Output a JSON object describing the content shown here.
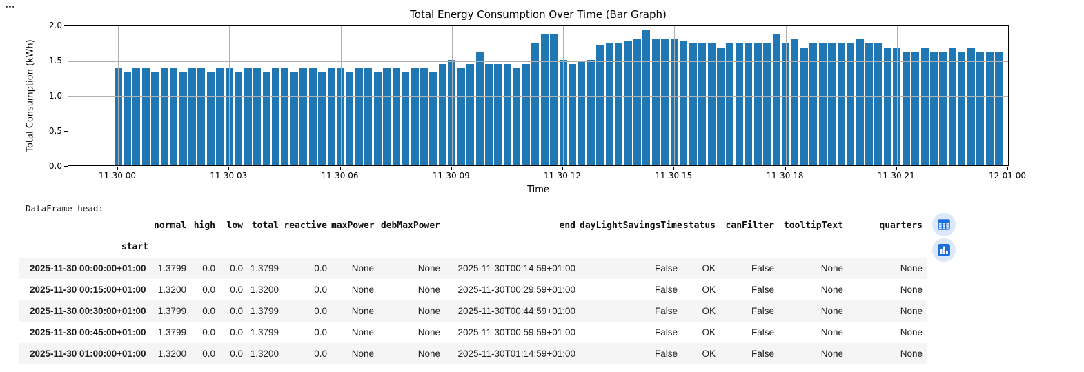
{
  "more_actions": {
    "icon": "ellipsis-icon"
  },
  "chart": {
    "title": "Total Energy Consumption Over Time (Bar Graph)",
    "ylabel": "Total Consumption (kWh)",
    "xlabel": "Time",
    "yticks": [
      "2.0",
      "1.5",
      "1.0",
      "0.5",
      "0.0"
    ],
    "xticks": [
      "11-30 00",
      "11-30 03",
      "11-30 06",
      "11-30 09",
      "11-30 12",
      "11-30 15",
      "11-30 18",
      "11-30 21",
      "12-01 00"
    ],
    "bar_color": "#1f77b4",
    "grid_color": "#b0b0b0"
  },
  "chart_data": {
    "type": "bar",
    "title": "Total Energy Consumption Over Time (Bar Graph)",
    "xlabel": "Time",
    "ylabel": "Total Consumption (kWh)",
    "ylim": [
      0,
      2.0
    ],
    "grid": true,
    "date": "2025-11-30",
    "interval_minutes": 15,
    "x": [
      "00:00",
      "00:15",
      "00:30",
      "00:45",
      "01:00",
      "01:15",
      "01:30",
      "01:45",
      "02:00",
      "02:15",
      "02:30",
      "02:45",
      "03:00",
      "03:15",
      "03:30",
      "03:45",
      "04:00",
      "04:15",
      "04:30",
      "04:45",
      "05:00",
      "05:15",
      "05:30",
      "05:45",
      "06:00",
      "06:15",
      "06:30",
      "06:45",
      "07:00",
      "07:15",
      "07:30",
      "07:45",
      "08:00",
      "08:15",
      "08:30",
      "08:45",
      "09:00",
      "09:15",
      "09:30",
      "09:45",
      "10:00",
      "10:15",
      "10:30",
      "10:45",
      "11:00",
      "11:15",
      "11:30",
      "11:45",
      "12:00",
      "12:15",
      "12:30",
      "12:45",
      "13:00",
      "13:15",
      "13:30",
      "13:45",
      "14:00",
      "14:15",
      "14:30",
      "14:45",
      "15:00",
      "15:15",
      "15:30",
      "15:45",
      "16:00",
      "16:15",
      "16:30",
      "16:45",
      "17:00",
      "17:15",
      "17:30",
      "17:45",
      "18:00",
      "18:15",
      "18:30",
      "18:45",
      "19:00",
      "19:15",
      "19:30",
      "19:45",
      "20:00",
      "20:15",
      "20:30",
      "20:45",
      "21:00",
      "21:15",
      "21:30",
      "21:45",
      "22:00",
      "22:15",
      "22:30",
      "22:45",
      "23:00",
      "23:15",
      "23:30",
      "23:45"
    ],
    "values": [
      1.38,
      1.32,
      1.38,
      1.38,
      1.32,
      1.38,
      1.38,
      1.32,
      1.38,
      1.38,
      1.32,
      1.38,
      1.38,
      1.32,
      1.38,
      1.38,
      1.32,
      1.38,
      1.38,
      1.32,
      1.38,
      1.38,
      1.32,
      1.38,
      1.38,
      1.32,
      1.38,
      1.38,
      1.32,
      1.38,
      1.38,
      1.32,
      1.38,
      1.38,
      1.32,
      1.44,
      1.5,
      1.38,
      1.44,
      1.62,
      1.44,
      1.44,
      1.44,
      1.38,
      1.44,
      1.74,
      1.86,
      1.86,
      1.5,
      1.44,
      1.47,
      1.5,
      1.71,
      1.74,
      1.74,
      1.77,
      1.8,
      1.92,
      1.8,
      1.8,
      1.8,
      1.77,
      1.74,
      1.74,
      1.74,
      1.68,
      1.74,
      1.74,
      1.74,
      1.74,
      1.74,
      1.86,
      1.74,
      1.8,
      1.68,
      1.74,
      1.74,
      1.74,
      1.74,
      1.74,
      1.8,
      1.74,
      1.74,
      1.68,
      1.68,
      1.62,
      1.62,
      1.68,
      1.62,
      1.62,
      1.68,
      1.62,
      1.68,
      1.62,
      1.62,
      1.62
    ]
  },
  "dataframe": {
    "label": "DataFrame head:",
    "index_name": "start",
    "columns": [
      "normal",
      "high",
      "low",
      "total",
      "reactive",
      "maxPower",
      "debMaxPower",
      "end",
      "dayLightSavingsTime",
      "status",
      "canFilter",
      "tooltipText",
      "quarters"
    ],
    "rows": [
      [
        "2025-11-30 00:00:00+01:00",
        "1.3799",
        "0.0",
        "0.0",
        "1.3799",
        "0.0",
        "None",
        "None",
        "2025-11-30T00:14:59+01:00",
        "False",
        "OK",
        "False",
        "None",
        "None"
      ],
      [
        "2025-11-30 00:15:00+01:00",
        "1.3200",
        "0.0",
        "0.0",
        "1.3200",
        "0.0",
        "None",
        "None",
        "2025-11-30T00:29:59+01:00",
        "False",
        "OK",
        "False",
        "None",
        "None"
      ],
      [
        "2025-11-30 00:30:00+01:00",
        "1.3799",
        "0.0",
        "0.0",
        "1.3799",
        "0.0",
        "None",
        "None",
        "2025-11-30T00:44:59+01:00",
        "False",
        "OK",
        "False",
        "None",
        "None"
      ],
      [
        "2025-11-30 00:45:00+01:00",
        "1.3799",
        "0.0",
        "0.0",
        "1.3799",
        "0.0",
        "None",
        "None",
        "2025-11-30T00:59:59+01:00",
        "False",
        "OK",
        "False",
        "None",
        "None"
      ],
      [
        "2025-11-30 01:00:00+01:00",
        "1.3200",
        "0.0",
        "0.0",
        "1.3200",
        "0.0",
        "None",
        "None",
        "2025-11-30T01:14:59+01:00",
        "False",
        "OK",
        "False",
        "None",
        "None"
      ]
    ],
    "row_stripe_color": "#f5f5f5"
  },
  "view_toggles": {
    "table_button_icon": "table-icon",
    "chart_button_icon": "bar-chart-icon",
    "accent_color": "#1b6ede",
    "button_bg_color": "#dce8fa"
  }
}
